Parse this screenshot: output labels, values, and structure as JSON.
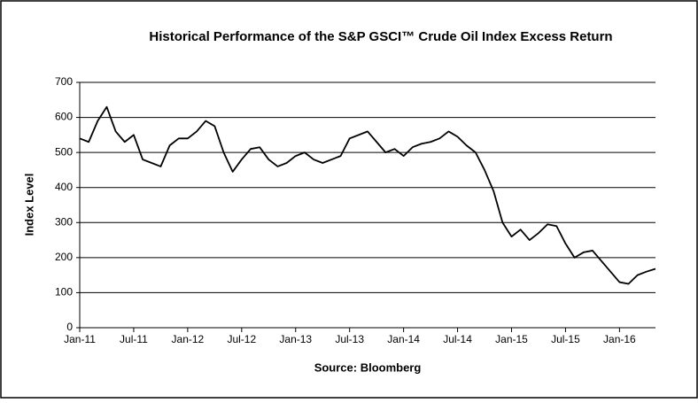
{
  "chart_data": {
    "type": "line",
    "title": "Historical Performance of the S&P GSCI™ Crude Oil Index Excess Return",
    "y_label": "Index Level",
    "x_label": "Source: Bloomberg",
    "x": [
      "2011-01",
      "2011-02",
      "2011-03",
      "2011-04",
      "2011-05",
      "2011-06",
      "2011-07",
      "2011-08",
      "2011-09",
      "2011-10",
      "2011-11",
      "2011-12",
      "2012-01",
      "2012-02",
      "2012-03",
      "2012-04",
      "2012-05",
      "2012-06",
      "2012-07",
      "2012-08",
      "2012-09",
      "2012-10",
      "2012-11",
      "2012-12",
      "2013-01",
      "2013-02",
      "2013-03",
      "2013-04",
      "2013-05",
      "2013-06",
      "2013-07",
      "2013-08",
      "2013-09",
      "2013-10",
      "2013-11",
      "2013-12",
      "2014-01",
      "2014-02",
      "2014-03",
      "2014-04",
      "2014-05",
      "2014-06",
      "2014-07",
      "2014-08",
      "2014-09",
      "2014-10",
      "2014-11",
      "2014-12",
      "2015-01",
      "2015-02",
      "2015-03",
      "2015-04",
      "2015-05",
      "2015-06",
      "2015-07",
      "2015-08",
      "2015-09",
      "2015-10",
      "2015-11",
      "2015-12",
      "2016-01",
      "2016-02",
      "2016-03",
      "2016-04",
      "2016-05"
    ],
    "series": [
      {
        "name": "S&P GSCI Crude Oil Index Excess Return",
        "color": "#000000",
        "values": [
          540,
          530,
          590,
          630,
          560,
          530,
          550,
          480,
          470,
          460,
          520,
          540,
          540,
          560,
          590,
          575,
          500,
          445,
          480,
          510,
          515,
          480,
          460,
          470,
          490,
          500,
          480,
          470,
          480,
          490,
          540,
          550,
          560,
          530,
          500,
          510,
          490,
          515,
          525,
          530,
          540,
          560,
          545,
          520,
          500,
          450,
          390,
          300,
          260,
          280,
          250,
          270,
          295,
          290,
          240,
          200,
          215,
          220,
          190,
          160,
          130,
          125,
          150,
          160,
          168
        ]
      }
    ],
    "xlim": [
      "2011-01",
      "2016-05"
    ],
    "xticks": [
      {
        "value": "2011-01",
        "label": "Jan-11"
      },
      {
        "value": "2011-07",
        "label": "Jul-11"
      },
      {
        "value": "2012-01",
        "label": "Jan-12"
      },
      {
        "value": "2012-07",
        "label": "Jul-12"
      },
      {
        "value": "2013-01",
        "label": "Jan-13"
      },
      {
        "value": "2013-07",
        "label": "Jul-13"
      },
      {
        "value": "2014-01",
        "label": "Jan-14"
      },
      {
        "value": "2014-07",
        "label": "Jul-14"
      },
      {
        "value": "2015-01",
        "label": "Jan-15"
      },
      {
        "value": "2015-07",
        "label": "Jul-15"
      },
      {
        "value": "2016-01",
        "label": "Jan-16"
      }
    ],
    "ylim": [
      0,
      700
    ],
    "yticks": [
      0,
      100,
      200,
      300,
      400,
      500,
      600,
      700
    ],
    "grid": true
  }
}
